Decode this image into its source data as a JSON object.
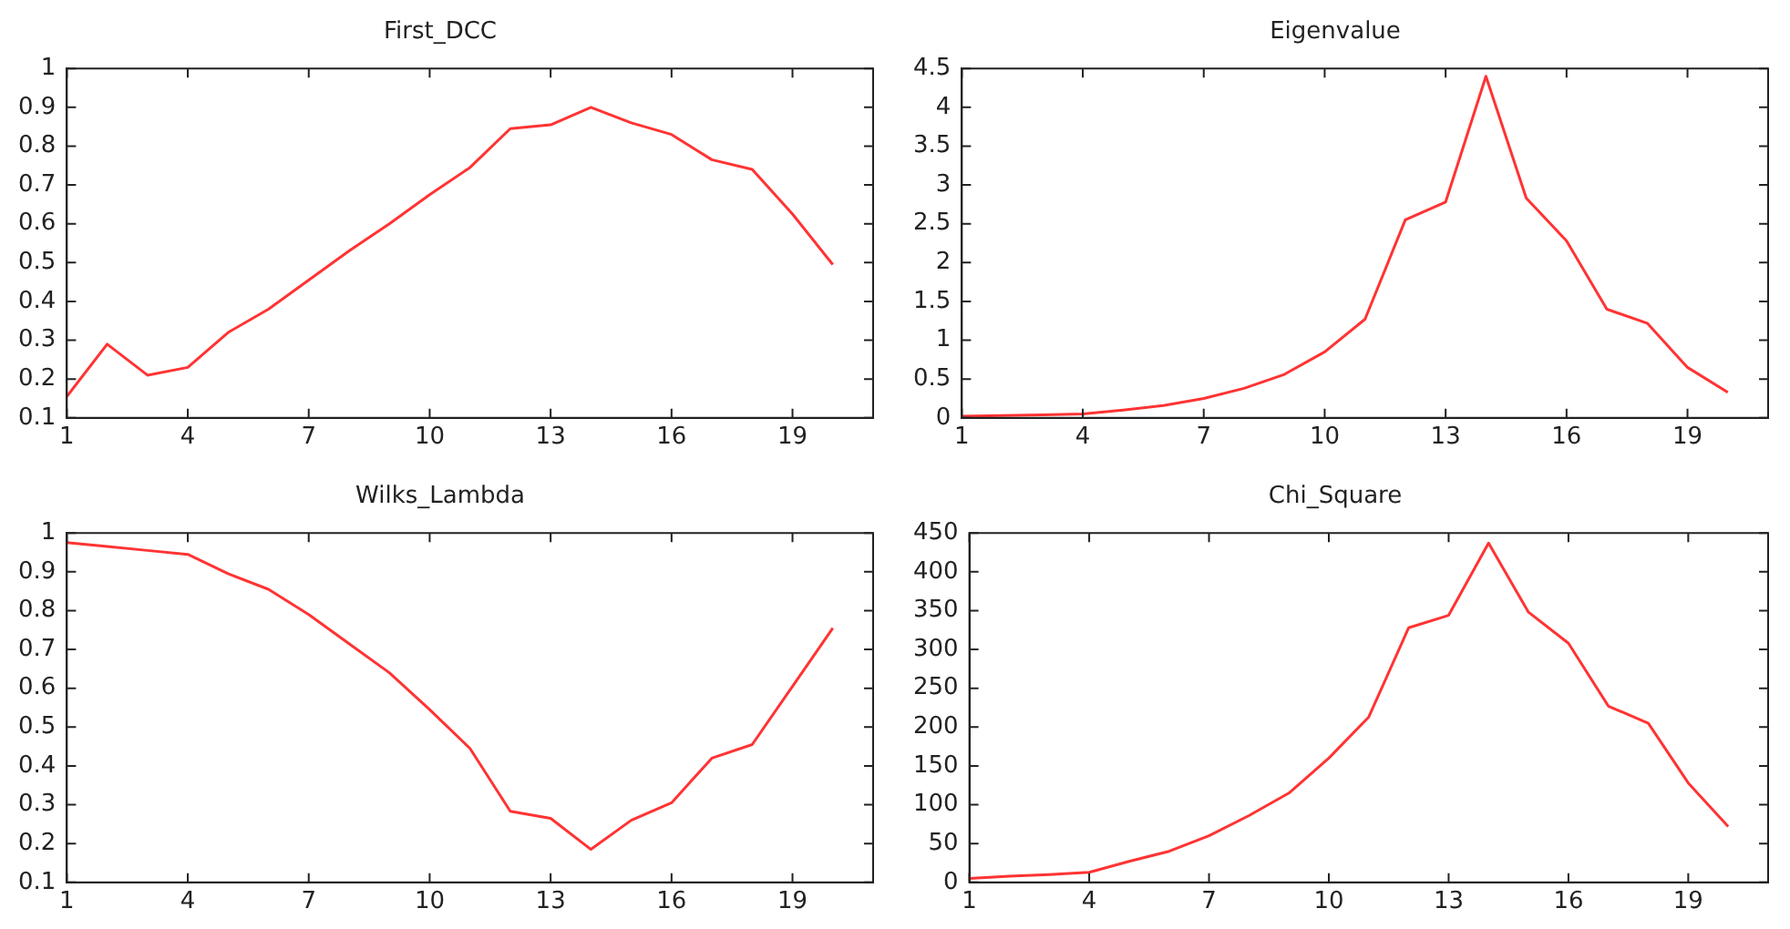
{
  "chart_data": [
    {
      "type": "line",
      "title": "First_DCC",
      "x": [
        1,
        2,
        3,
        4,
        5,
        6,
        7,
        8,
        9,
        10,
        11,
        12,
        13,
        14,
        15,
        16,
        17,
        18,
        19,
        20
      ],
      "color": "#ff3333",
      "values": [
        0.155,
        0.29,
        0.21,
        0.23,
        0.32,
        0.38,
        0.455,
        0.53,
        0.6,
        0.675,
        0.745,
        0.845,
        0.855,
        0.9,
        0.86,
        0.83,
        0.765,
        0.74,
        0.625,
        0.495
      ],
      "xlim": [
        1,
        21
      ],
      "xticks": [
        1,
        4,
        7,
        10,
        13,
        16,
        19
      ],
      "ylim": [
        0.1,
        1
      ],
      "yticks": [
        0.1,
        0.2,
        0.3,
        0.4,
        0.5,
        0.6,
        0.7,
        0.8,
        0.9,
        1
      ],
      "grid": false,
      "legend": false
    },
    {
      "type": "line",
      "title": "Eigenvalue",
      "x": [
        1,
        2,
        3,
        4,
        5,
        6,
        7,
        8,
        9,
        10,
        11,
        12,
        13,
        14,
        15,
        16,
        17,
        18,
        19,
        20
      ],
      "color": "#ff3333",
      "values": [
        0.02,
        0.03,
        0.04,
        0.05,
        0.1,
        0.16,
        0.25,
        0.38,
        0.56,
        0.85,
        1.27,
        2.55,
        2.78,
        4.4,
        2.83,
        2.28,
        1.4,
        1.22,
        0.65,
        0.33
      ],
      "xlim": [
        1,
        21
      ],
      "xticks": [
        1,
        4,
        7,
        10,
        13,
        16,
        19
      ],
      "ylim": [
        0,
        4.5
      ],
      "yticks": [
        0,
        0.5,
        1,
        1.5,
        2,
        2.5,
        3,
        3.5,
        4,
        4.5
      ],
      "grid": false,
      "legend": false
    },
    {
      "type": "line",
      "title": "Wilks_Lambda",
      "x": [
        1,
        2,
        3,
        4,
        5,
        6,
        7,
        8,
        9,
        10,
        11,
        12,
        13,
        14,
        15,
        16,
        17,
        18,
        19,
        20
      ],
      "color": "#ff3333",
      "values": [
        0.975,
        0.965,
        0.955,
        0.945,
        0.895,
        0.855,
        0.79,
        0.715,
        0.64,
        0.545,
        0.445,
        0.283,
        0.265,
        0.185,
        0.26,
        0.305,
        0.42,
        0.455,
        0.605,
        0.755
      ],
      "xlim": [
        1,
        21
      ],
      "xticks": [
        1,
        4,
        7,
        10,
        13,
        16,
        19
      ],
      "ylim": [
        0.1,
        1
      ],
      "yticks": [
        0.1,
        0.2,
        0.3,
        0.4,
        0.5,
        0.6,
        0.7,
        0.8,
        0.9,
        1
      ],
      "grid": false,
      "legend": false
    },
    {
      "type": "line",
      "title": "Chi_Square",
      "x": [
        1,
        2,
        3,
        4,
        5,
        6,
        7,
        8,
        9,
        10,
        11,
        12,
        13,
        14,
        15,
        16,
        17,
        18,
        19,
        20
      ],
      "color": "#ff3333",
      "values": [
        5,
        8,
        10,
        13,
        27,
        40,
        60,
        86,
        115,
        160,
        213,
        328,
        344,
        437,
        348,
        308,
        227,
        205,
        128,
        72
      ],
      "xlim": [
        1,
        21
      ],
      "xticks": [
        1,
        4,
        7,
        10,
        13,
        16,
        19
      ],
      "ylim": [
        0,
        450
      ],
      "yticks": [
        0,
        50,
        100,
        150,
        200,
        250,
        300,
        350,
        400,
        450
      ],
      "grid": false,
      "legend": false
    }
  ]
}
